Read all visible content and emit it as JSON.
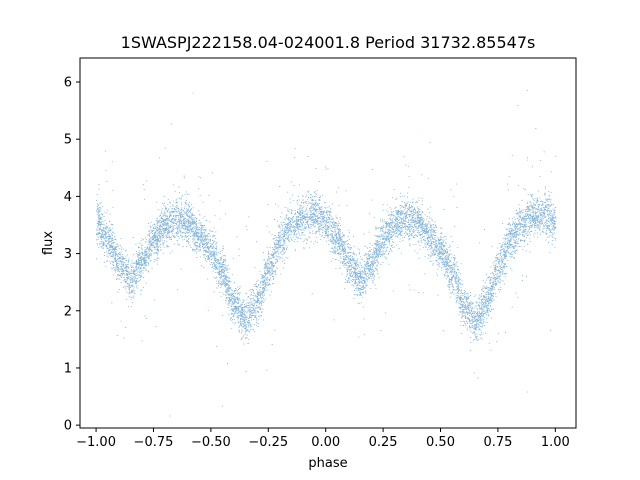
{
  "chart_data": {
    "type": "scatter",
    "title": "1SWASPJ222158.04-024001.8 Period 31732.85547s",
    "xlabel": "phase",
    "ylabel": "flux",
    "xlim": [
      -1.07,
      1.09
    ],
    "ylim": [
      -0.05,
      6.42
    ],
    "x_ticks": [
      -1.0,
      -0.75,
      -0.5,
      -0.25,
      0.0,
      0.25,
      0.5,
      0.75,
      1.0
    ],
    "x_tick_labels": [
      "−1.00",
      "−0.75",
      "−0.50",
      "−0.25",
      "0.00",
      "0.25",
      "0.50",
      "0.75",
      "1.00"
    ],
    "y_ticks": [
      0,
      1,
      2,
      3,
      4,
      5,
      6
    ],
    "y_tick_labels": [
      "0",
      "1",
      "2",
      "3",
      "4",
      "5",
      "6"
    ],
    "grid": false,
    "point_color": "#1f77b4",
    "phase_range": [
      -1.0,
      1.0
    ],
    "light_curve_profile": [
      [
        -1.0,
        3.55
      ],
      [
        -0.95,
        3.25
      ],
      [
        -0.9,
        2.85
      ],
      [
        -0.85,
        2.55
      ],
      [
        -0.8,
        2.85
      ],
      [
        -0.75,
        3.25
      ],
      [
        -0.7,
        3.5
      ],
      [
        -0.65,
        3.6
      ],
      [
        -0.6,
        3.55
      ],
      [
        -0.55,
        3.3
      ],
      [
        -0.5,
        3.05
      ],
      [
        -0.45,
        2.65
      ],
      [
        -0.4,
        2.1
      ],
      [
        -0.35,
        1.85
      ],
      [
        -0.3,
        2.15
      ],
      [
        -0.25,
        2.75
      ],
      [
        -0.2,
        3.2
      ],
      [
        -0.15,
        3.5
      ],
      [
        -0.1,
        3.65
      ],
      [
        -0.05,
        3.7
      ],
      [
        0.0,
        3.55
      ],
      [
        0.05,
        3.25
      ],
      [
        0.1,
        2.85
      ],
      [
        0.15,
        2.55
      ],
      [
        0.2,
        2.85
      ],
      [
        0.25,
        3.25
      ],
      [
        0.3,
        3.5
      ],
      [
        0.35,
        3.6
      ],
      [
        0.4,
        3.55
      ],
      [
        0.45,
        3.3
      ],
      [
        0.5,
        3.05
      ],
      [
        0.55,
        2.65
      ],
      [
        0.6,
        2.1
      ],
      [
        0.65,
        1.85
      ],
      [
        0.7,
        2.15
      ],
      [
        0.75,
        2.75
      ],
      [
        0.8,
        3.2
      ],
      [
        0.85,
        3.5
      ],
      [
        0.9,
        3.65
      ],
      [
        0.95,
        3.7
      ],
      [
        1.0,
        3.55
      ]
    ],
    "scatter_sigma": 0.18
  }
}
